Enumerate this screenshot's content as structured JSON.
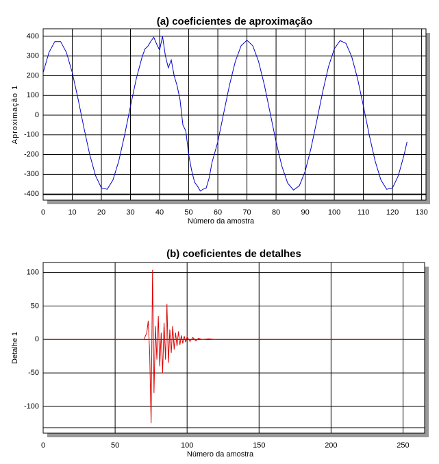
{
  "chart_data": [
    {
      "type": "line",
      "title": "(a) coeficientes de aproximação",
      "xlabel": "Número da amostra",
      "ylabel": "Aproximação 1",
      "xlim": [
        0,
        131.5
      ],
      "xticks": [
        0,
        10,
        20,
        30,
        40,
        50,
        60,
        70,
        80,
        90,
        100,
        110,
        120,
        130
      ],
      "ylim": [
        -431,
        438
      ],
      "yticks": [
        -400,
        -300,
        -200,
        -100,
        0,
        100,
        200,
        300,
        400
      ],
      "grid": true,
      "series": [
        {
          "color": "#0000cc",
          "x": [
            0,
            2,
            4,
            6,
            8,
            10,
            12,
            14,
            16,
            18,
            20,
            22,
            24,
            26,
            28,
            30,
            32,
            34,
            35,
            36,
            37,
            38,
            39,
            40,
            41,
            42,
            43,
            44,
            45,
            46,
            47,
            48,
            49,
            50,
            51,
            52,
            53,
            54,
            55,
            56,
            57,
            58,
            60,
            62,
            64,
            66,
            68,
            70,
            72,
            74,
            76,
            78,
            80,
            82,
            84,
            86,
            88,
            90,
            92,
            94,
            96,
            98,
            100,
            102,
            104,
            106,
            108,
            110,
            112,
            114,
            116,
            118,
            120,
            122,
            124,
            125
          ],
          "values": [
            216,
            318,
            373,
            373,
            318,
            216,
            82,
            -64,
            -200,
            -307,
            -369,
            -376,
            -328,
            -231,
            -100,
            46,
            185,
            296,
            336,
            350,
            375,
            395,
            360,
            330,
            400,
            300,
            240,
            280,
            200,
            150,
            80,
            -50,
            -80,
            -200,
            -280,
            -340,
            -360,
            -385,
            -375,
            -370,
            -320,
            -240,
            -135,
            9,
            152,
            272,
            352,
            380,
            352,
            272,
            152,
            9,
            -135,
            -259,
            -345,
            -380,
            -358,
            -285,
            -168,
            -28,
            117,
            245,
            336,
            378,
            364,
            296,
            185,
            46,
            -100,
            -231,
            -328,
            -376,
            -369,
            -307,
            -200,
            -135
          ]
        }
      ]
    },
    {
      "type": "line",
      "title": "(b) coeficientes de detalhes",
      "xlabel": "Número da amostra",
      "ylabel": "Detalhe 1",
      "xlim": [
        0,
        265
      ],
      "xticks": [
        0,
        50,
        100,
        150,
        200,
        250
      ],
      "ylim": [
        -140,
        115
      ],
      "yticks": [
        -100,
        -50,
        0,
        50,
        100
      ],
      "grid": true,
      "series": [
        {
          "color": "#dd0000",
          "x": [
            0,
            70,
            72,
            73,
            74,
            75,
            76,
            77,
            78,
            79,
            80,
            81,
            82,
            83,
            84,
            85,
            86,
            87,
            88,
            89,
            90,
            91,
            92,
            93,
            94,
            95,
            96,
            97,
            98,
            99,
            100,
            102,
            104,
            106,
            108,
            110,
            115,
            120,
            250
          ],
          "values": [
            0,
            0,
            10,
            28,
            -20,
            -125,
            104,
            -80,
            20,
            -30,
            35,
            -40,
            10,
            -50,
            25,
            -30,
            53,
            -35,
            15,
            -20,
            20,
            -15,
            10,
            -10,
            12,
            -8,
            6,
            -6,
            5,
            -4,
            4,
            -3,
            3,
            -2,
            2,
            0,
            1,
            0,
            0
          ]
        }
      ]
    }
  ]
}
